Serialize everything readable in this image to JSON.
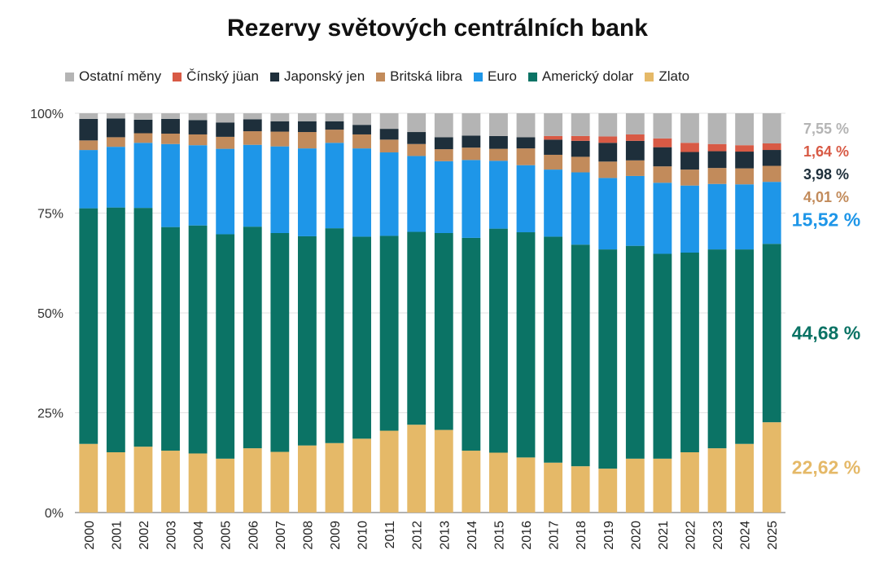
{
  "chart_data": {
    "type": "bar",
    "stacked": true,
    "normalized_percent": true,
    "title": "Rezervy světových centrálních bank",
    "xlabel": "",
    "ylabel": "",
    "ylim": [
      0,
      100
    ],
    "yticks": [
      "0%",
      "25%",
      "50%",
      "75%",
      "100%"
    ],
    "legend_position": "top",
    "grid": true,
    "categories": [
      "2000",
      "2001",
      "2002",
      "2003",
      "2004",
      "2005",
      "2006",
      "2007",
      "2008",
      "2009",
      "2010",
      "2011",
      "2012",
      "2013",
      "2014",
      "2015",
      "2016",
      "2017",
      "2018",
      "2019",
      "2020",
      "2021",
      "2022",
      "2023",
      "2024",
      "2025"
    ],
    "series": [
      {
        "name": "Zlato",
        "color": "#E5B968",
        "values": [
          17.2,
          15.1,
          16.5,
          15.5,
          14.8,
          13.5,
          16.1,
          15.2,
          16.8,
          17.4,
          18.5,
          20.5,
          22.0,
          20.7,
          15.5,
          15.0,
          13.8,
          12.5,
          11.6,
          11.0,
          13.5,
          13.5,
          15.1,
          16.1,
          17.2,
          22.62
        ]
      },
      {
        "name": "Americký dolar",
        "color": "#0B7365",
        "values": [
          59.0,
          61.3,
          59.8,
          56.0,
          57.1,
          56.2,
          55.5,
          54.8,
          52.4,
          53.8,
          50.6,
          48.8,
          48.3,
          49.3,
          53.3,
          56.1,
          56.4,
          56.6,
          55.5,
          54.9,
          53.3,
          51.3,
          50.0,
          49.8,
          48.7,
          44.68
        ]
      },
      {
        "name": "Euro",
        "color": "#1E96E8",
        "values": [
          14.6,
          15.2,
          16.3,
          20.8,
          20.1,
          21.4,
          20.5,
          21.7,
          22.0,
          21.4,
          22.1,
          20.9,
          19.0,
          18.0,
          19.5,
          17.0,
          16.8,
          16.8,
          18.1,
          17.9,
          17.5,
          17.8,
          16.8,
          16.4,
          16.3,
          15.52
        ]
      },
      {
        "name": "Britská libra",
        "color": "#C28B5B",
        "values": [
          2.4,
          2.4,
          2.4,
          2.6,
          2.7,
          3.0,
          3.4,
          3.7,
          4.1,
          3.3,
          3.5,
          3.2,
          3.0,
          3.0,
          3.1,
          3.0,
          4.2,
          3.7,
          3.9,
          4.1,
          3.9,
          4.1,
          4.0,
          4.0,
          4.0,
          4.01
        ]
      },
      {
        "name": "Japonský jen",
        "color": "#1E2F3B",
        "values": [
          5.4,
          4.7,
          3.4,
          3.7,
          3.6,
          3.6,
          3.0,
          2.6,
          2.7,
          2.1,
          2.4,
          2.7,
          3.0,
          3.0,
          3.0,
          3.2,
          2.8,
          3.8,
          4.0,
          4.7,
          4.9,
          4.8,
          4.4,
          4.2,
          4.2,
          3.98
        ]
      },
      {
        "name": "Čínský jüan",
        "color": "#D85A45",
        "values": [
          0,
          0,
          0,
          0,
          0,
          0,
          0,
          0,
          0,
          0,
          0,
          0,
          0,
          0,
          0,
          0,
          0,
          0.9,
          1.2,
          1.6,
          1.6,
          2.2,
          2.3,
          1.8,
          1.6,
          1.64
        ]
      },
      {
        "name": "Ostatní měny",
        "color": "#B4B4B4",
        "values": [
          1.4,
          1.3,
          1.6,
          1.4,
          1.7,
          2.3,
          1.5,
          2.0,
          2.0,
          2.0,
          2.9,
          3.9,
          4.7,
          6.0,
          5.6,
          5.7,
          6.0,
          5.7,
          5.7,
          5.8,
          5.3,
          6.3,
          7.4,
          7.7,
          8.0,
          7.55
        ]
      }
    ],
    "end_labels": [
      {
        "series": "Ostatní měny",
        "text": "7,55 %",
        "color": "#B4B4B4"
      },
      {
        "series": "Čínský jüan",
        "text": "1,64 %",
        "color": "#D85A45"
      },
      {
        "series": "Japonský jen",
        "text": "3,98 %",
        "color": "#1E2F3B"
      },
      {
        "series": "Britská libra",
        "text": "4,01 %",
        "color": "#C28B5B"
      },
      {
        "series": "Euro",
        "text": "15,52 %",
        "color": "#1E96E8"
      },
      {
        "series": "Americký dolar",
        "text": "44,68 %",
        "color": "#0B7365"
      },
      {
        "series": "Zlato",
        "text": "22,62 %",
        "color": "#E5B968"
      }
    ]
  },
  "legend_order": [
    "Ostatní měny",
    "Čínský jüan",
    "Japonský jen",
    "Britská libra",
    "Euro",
    "Americký dolar",
    "Zlato"
  ]
}
